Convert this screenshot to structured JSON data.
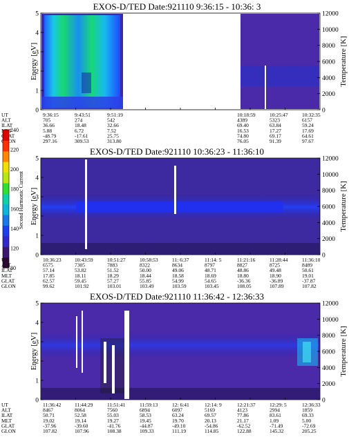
{
  "figure": {
    "colorbar": {
      "label": "Second Harmonic Current",
      "ticks": [
        "80",
        "120",
        "140",
        "160",
        "180",
        "200",
        "220",
        "240"
      ],
      "colors": [
        "#2a0a2e",
        "#3a1870",
        "#3228c8",
        "#1e3cf0",
        "#1a78e8",
        "#10b4d8",
        "#10d0a8",
        "#30e030",
        "#b8e810",
        "#f0e000",
        "#ff8800",
        "#ff3000",
        "#e00000"
      ]
    }
  },
  "chart_data": [
    {
      "type": "heatmap",
      "title": "EXOS-D/TED   Date:921110  9:36:15 - 10:36: 3",
      "ylabel": "Energy [eV]",
      "y2label": "Temperature [K]",
      "ylim": [
        0,
        5
      ],
      "y2lim": [
        0,
        12000
      ],
      "yticks": [
        "0",
        "1",
        "2",
        "3",
        "4",
        "5"
      ],
      "y2ticks": [
        "0",
        "2000",
        "4000",
        "6000",
        "8000",
        "10000",
        "12000"
      ],
      "table": {
        "row_labels": [
          "UT",
          "ALT",
          "ILAT",
          "MLT",
          "GLAT",
          "GLON"
        ],
        "columns": [
          [
            "9:36:15",
            "705",
            "36.66",
            "5.88",
            "-48.79",
            "297.16"
          ],
          [
            "9:43:51",
            "274",
            "18.48",
            "6.72",
            "-17.61",
            "309.53"
          ],
          [
            "9:51:19",
            "542",
            "32.66",
            "7.52",
            "25.75",
            "313.80"
          ],
          [
            "",
            "",
            "",
            "",
            "",
            ""
          ],
          [
            "",
            "",
            "",
            "",
            "",
            ""
          ],
          [
            "",
            "",
            "",
            "",
            "",
            ""
          ],
          [
            "10:18:59",
            "4389",
            "69.40",
            "16.53",
            "74.80",
            "76.05"
          ],
          [
            "10:25:47",
            "5323",
            "63.84",
            "17.27",
            "69.17",
            "91.39"
          ],
          [
            "10:32:35",
            "6157",
            "59.24",
            "17.69",
            "64.61",
            "97.67"
          ]
        ]
      }
    },
    {
      "type": "heatmap",
      "title": "EXOS-D/TED   Date:921110  10:36:23 - 11:36:10",
      "ylabel": "Energy [eV]",
      "y2label": "Temperature [K]",
      "ylim": [
        0,
        5
      ],
      "y2lim": [
        0,
        12000
      ],
      "yticks": [
        "0",
        "1",
        "2",
        "3",
        "4",
        "5"
      ],
      "y2ticks": [
        "0",
        "2000",
        "4000",
        "6000",
        "8000",
        "10000",
        "12000"
      ],
      "table": {
        "row_labels": [
          "UT",
          "ALT",
          "ILAT",
          "MLT",
          "GLAT",
          "GLON"
        ],
        "columns": [
          [
            "10:36:23",
            "6575",
            "57.14",
            "17.85",
            "62.57",
            "99.62"
          ],
          [
            "10:43:59",
            "7305",
            "53.82",
            "18.11",
            "59.45",
            "101.92"
          ],
          [
            "10:51:27",
            "7883",
            "51.52",
            "18.29",
            "57.27",
            "103.01"
          ],
          [
            "10:58:53",
            "8322",
            "50.00",
            "18.44",
            "55.85",
            "103.49"
          ],
          [
            "11: 6:37",
            "8634",
            "49.06",
            "18.58",
            "54.99",
            "103.59"
          ],
          [
            "11:14: 5",
            "8797",
            "48.71",
            "18.69",
            "54.65",
            "103.45"
          ],
          [
            "11:21:16",
            "8827",
            "48.86",
            "18.80",
            "-36.36",
            "108.05"
          ],
          [
            "11:28:44",
            "8725",
            "49.48",
            "18.90",
            "-36.89",
            "107.89"
          ],
          [
            "11:36:10",
            "8489",
            "50.61",
            "19.01",
            "-37.87",
            "107.82"
          ]
        ]
      }
    },
    {
      "type": "heatmap",
      "title": "EXOS-D/TED   Date:921110  11:36:42 - 12:36:33",
      "ylabel": "Energy [eV]",
      "y2label": "Temperature [K]",
      "ylim": [
        0,
        5
      ],
      "y2lim": [
        0,
        12000
      ],
      "yticks": [
        "0",
        "1",
        "2",
        "3",
        "4",
        "5"
      ],
      "y2ticks": [
        "0",
        "2000",
        "4000",
        "6000",
        "8000",
        "10000",
        "12000"
      ],
      "table": {
        "row_labels": [
          "UT",
          "ALT",
          "ILAT",
          "MLT",
          "GLAT",
          "GLON"
        ],
        "columns": [
          [
            "11:36:42",
            "8467",
            "50.71",
            "19.02",
            "-37.96",
            "107.82"
          ],
          [
            "11:44:29",
            "8064",
            "52.58",
            "19.14",
            "-39.60",
            "107.96"
          ],
          [
            "11:51:41",
            "7560",
            "55.03",
            "19.27",
            "-41.76",
            "108.38"
          ],
          [
            "11:59:13",
            "6894",
            "58.53",
            "19.45",
            "-44.87",
            "109.33"
          ],
          [
            "12: 6:41",
            "6097",
            "63.24",
            "19.70",
            "-49.10",
            "111.19"
          ],
          [
            "12:14: 9",
            "5169",
            "69.57",
            "20.13",
            "-54.86",
            "114.85"
          ],
          [
            "12:21:37",
            "4123",
            "77.86",
            "21.17",
            "-62.52",
            "122.88"
          ],
          [
            "12:29: 5",
            "2994",
            "83.61",
            "1.09",
            "-71.49",
            "145.32"
          ],
          [
            "12:36:33",
            "1859",
            "69.33",
            "5.00",
            "-72.69",
            "205.25"
          ]
        ]
      }
    }
  ]
}
